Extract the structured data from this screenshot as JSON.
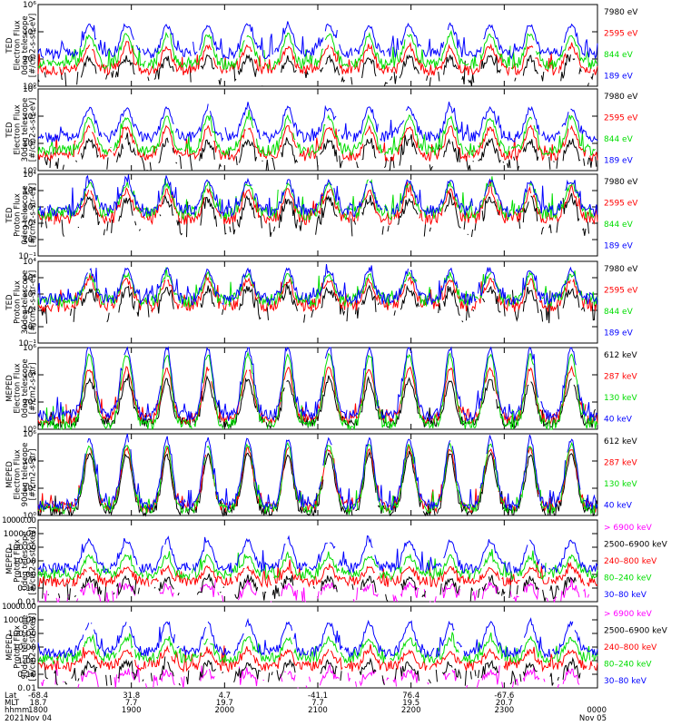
{
  "colors": {
    "black": "#000000",
    "red": "#ff0000",
    "green": "#00dd00",
    "blue": "#0000ff",
    "magenta": "#ff00ff"
  },
  "chart_data": [
    {
      "type": "line",
      "ylabel": [
        "TED",
        "Electron Flux",
        "0deg telescope",
        "[#/cm2-s-str-eV]"
      ],
      "ylog": true,
      "ylim": [
        1,
        1000000
      ],
      "yticks": [
        {
          "v": 1,
          "t": "10⁰"
        },
        {
          "v": 100,
          "t": "10²"
        },
        {
          "v": 10000,
          "t": "10⁴"
        },
        {
          "v": 1000000,
          "t": "10⁶"
        }
      ],
      "series": [
        {
          "name": "7980 eV",
          "color": "#000000",
          "base": 3,
          "peak": 120,
          "sparse": true
        },
        {
          "name": "2595 eV",
          "color": "#ff0000",
          "base": 15,
          "peak": 800
        },
        {
          "name": "844 eV",
          "color": "#00dd00",
          "base": 40,
          "peak": 6000
        },
        {
          "name": "189 eV",
          "color": "#0000ff",
          "base": 250,
          "peak": 30000
        }
      ]
    },
    {
      "type": "line",
      "ylabel": [
        "TED",
        "Electron Flux",
        "30deg telescope",
        "[#/cm2-s-str-eV]"
      ],
      "ylog": true,
      "ylim": [
        1,
        1000000
      ],
      "yticks": [
        {
          "v": 1,
          "t": "10⁰"
        },
        {
          "v": 100,
          "t": "10²"
        },
        {
          "v": 10000,
          "t": "10⁴"
        },
        {
          "v": 1000000,
          "t": "10⁶"
        }
      ],
      "series": [
        {
          "name": "7980 eV",
          "color": "#000000",
          "base": 3,
          "peak": 150,
          "sparse": true
        },
        {
          "name": "2595 eV",
          "color": "#ff0000",
          "base": 12,
          "peak": 1500
        },
        {
          "name": "844 eV",
          "color": "#00dd00",
          "base": 30,
          "peak": 8000
        },
        {
          "name": "189 eV",
          "color": "#0000ff",
          "base": 300,
          "peak": 40000
        }
      ]
    },
    {
      "type": "line",
      "ylabel": [
        "TED",
        "Proton Flux",
        "0deg telescope",
        "[#/cm2-s-str-eV]"
      ],
      "ylog": true,
      "ylim": [
        0.1,
        10000
      ],
      "yticks": [
        {
          "v": 0.1,
          "t": "10⁻¹"
        },
        {
          "v": 1,
          "t": "10⁰"
        },
        {
          "v": 10,
          "t": "10¹"
        },
        {
          "v": 100,
          "t": "10²"
        },
        {
          "v": 1000,
          "t": "10³"
        },
        {
          "v": 10000,
          "t": "10⁴"
        }
      ],
      "series": [
        {
          "name": "7980 eV",
          "color": "#000000",
          "base": 5,
          "peak": 300,
          "sparse": true
        },
        {
          "name": "2595 eV",
          "color": "#ff0000",
          "base": 20,
          "peak": 1000
        },
        {
          "name": "844 eV",
          "color": "#00dd00",
          "base": 40,
          "peak": 2500
        },
        {
          "name": "189 eV",
          "color": "#0000ff",
          "base": 60,
          "peak": 4000
        }
      ]
    },
    {
      "type": "line",
      "ylabel": [
        "TED",
        "Proton Flux",
        "30deg telescope",
        "[#/cm2-s-str-eV]"
      ],
      "ylog": true,
      "ylim": [
        0.1,
        10000
      ],
      "yticks": [
        {
          "v": 0.1,
          "t": "10⁻¹"
        },
        {
          "v": 1,
          "t": "10⁰"
        },
        {
          "v": 10,
          "t": "10¹"
        },
        {
          "v": 100,
          "t": "10²"
        },
        {
          "v": 1000,
          "t": "10³"
        },
        {
          "v": 10000,
          "t": "10⁴"
        }
      ],
      "series": [
        {
          "name": "7980 eV",
          "color": "#000000",
          "base": 6,
          "peak": 200,
          "sparse": true
        },
        {
          "name": "2595 eV",
          "color": "#ff0000",
          "base": 20,
          "peak": 700
        },
        {
          "name": "844 eV",
          "color": "#00dd00",
          "base": 40,
          "peak": 1500
        },
        {
          "name": "189 eV",
          "color": "#0000ff",
          "base": 50,
          "peak": 3000
        }
      ]
    },
    {
      "type": "line",
      "ylabel": [
        "MEPED",
        "Electron Flux",
        "0deg telescope",
        "[#/cm2-s-str]"
      ],
      "ylog": true,
      "ylim": [
        1,
        1000000
      ],
      "yticks": [
        {
          "v": 1,
          "t": "10⁰"
        },
        {
          "v": 100,
          "t": "10²"
        },
        {
          "v": 10000,
          "t": "10⁴"
        },
        {
          "v": 1000000,
          "t": "10⁶"
        }
      ],
      "series": [
        {
          "name": "612 keV",
          "color": "#000000",
          "base": 3,
          "peak": 4000
        },
        {
          "name": "287 keV",
          "color": "#ff0000",
          "base": 6,
          "peak": 30000
        },
        {
          "name": "130 keV",
          "color": "#00dd00",
          "base": 2,
          "peak": 300000
        },
        {
          "name": "40 keV",
          "color": "#0000ff",
          "base": 10,
          "peak": 900000
        }
      ]
    },
    {
      "type": "line",
      "ylabel": [
        "MEPED",
        "Electron Flux",
        "90deg telescope",
        "[#/cm2-s-str]"
      ],
      "ylog": true,
      "ylim": [
        1,
        1000000
      ],
      "yticks": [
        {
          "v": 1,
          "t": "10⁰"
        },
        {
          "v": 100,
          "t": "10²"
        },
        {
          "v": 10000,
          "t": "10⁴"
        },
        {
          "v": 1000000,
          "t": "10⁶"
        }
      ],
      "series": [
        {
          "name": "612 keV",
          "color": "#000000",
          "base": 2,
          "peak": 30000
        },
        {
          "name": "287 keV",
          "color": "#ff0000",
          "base": 4,
          "peak": 80000
        },
        {
          "name": "130 keV",
          "color": "#00dd00",
          "base": 3,
          "peak": 150000
        },
        {
          "name": "40 keV",
          "color": "#0000ff",
          "base": 6,
          "peak": 400000
        }
      ]
    },
    {
      "type": "line",
      "ylabel": [
        "MEPED",
        "Proton Flux",
        "0deg telescope",
        "[#/cm2-s-str-keV]"
      ],
      "ylog": true,
      "ylim": [
        0.01,
        10000
      ],
      "yticks": [
        {
          "v": 0.01,
          "t": "0.01"
        },
        {
          "v": 0.1,
          "t": "0.10"
        },
        {
          "v": 1,
          "t": "1.00"
        },
        {
          "v": 10,
          "t": "10.00"
        },
        {
          "v": 100,
          "t": "100.00"
        },
        {
          "v": 1000,
          "t": "1000.00"
        },
        {
          "v": 10000,
          "t": "10000.00"
        }
      ],
      "series": [
        {
          "name": "> 6900 keV",
          "color": "#ff00ff",
          "base": 0.02,
          "peak": 0.15,
          "sparse": true
        },
        {
          "name": "2500–6900 keV",
          "color": "#000000",
          "base": 0.04,
          "peak": 0.5,
          "sparse": true
        },
        {
          "name": "240–800 keV",
          "color": "#ff0000",
          "base": 0.3,
          "peak": 3
        },
        {
          "name": "80–240 keV",
          "color": "#00dd00",
          "base": 1,
          "peak": 20
        },
        {
          "name": "30–80 keV",
          "color": "#0000ff",
          "base": 3,
          "peak": 300
        }
      ]
    },
    {
      "type": "line",
      "ylabel": [
        "MEPED",
        "Proton Flux",
        "90deg telescope",
        "[#/cm2-s-str-keV]"
      ],
      "ylog": true,
      "ylim": [
        0.01,
        10000
      ],
      "yticks": [
        {
          "v": 0.01,
          "t": "0.01"
        },
        {
          "v": 0.1,
          "t": "0.10"
        },
        {
          "v": 1,
          "t": "1.00"
        },
        {
          "v": 10,
          "t": "10.00"
        },
        {
          "v": 100,
          "t": "100.00"
        },
        {
          "v": 1000,
          "t": "1000.00"
        },
        {
          "v": 10000,
          "t": "10000.00"
        }
      ],
      "series": [
        {
          "name": "> 6900 keV",
          "color": "#ff00ff",
          "base": 0.02,
          "peak": 0.15,
          "sparse": true
        },
        {
          "name": "2500–6900 keV",
          "color": "#000000",
          "base": 0.05,
          "peak": 0.6,
          "sparse": true
        },
        {
          "name": "240–800 keV",
          "color": "#ff0000",
          "base": 0.4,
          "peak": 5
        },
        {
          "name": "80–240 keV",
          "color": "#00dd00",
          "base": 1.5,
          "peak": 40
        },
        {
          "name": "30–80 keV",
          "color": "#0000ff",
          "base": 4,
          "peak": 600
        }
      ]
    }
  ],
  "x_axis": {
    "range_hours": [
      18,
      24
    ],
    "tick_hours": [
      18,
      19,
      20,
      21,
      22,
      23,
      24
    ],
    "row_labels": [
      "Lat",
      "MLT",
      "hhmm",
      "2021"
    ],
    "lat": [
      "-68.4",
      "31.8",
      "4.7",
      "-41.1",
      "76.4",
      "-67.6",
      ""
    ],
    "mlt": [
      "18.7",
      "7.7",
      "19.7",
      "7.7",
      "19.5",
      "20.7",
      ""
    ],
    "hhmm": [
      "1800",
      "1900",
      "2000",
      "2100",
      "2200",
      "2300",
      "0000"
    ],
    "date_start": "Nov 04",
    "date_end": "Nov 05"
  }
}
